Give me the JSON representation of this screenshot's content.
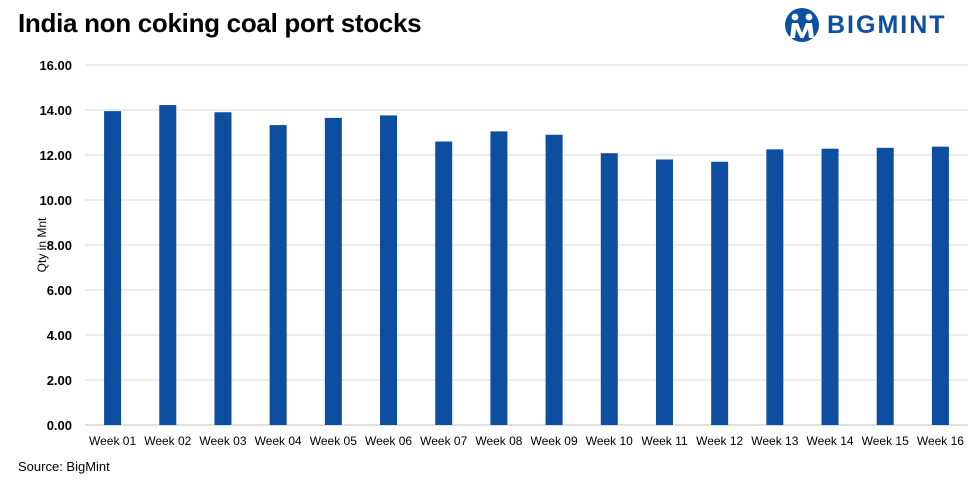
{
  "title": "India non coking coal port stocks",
  "logo": {
    "text": "BIGMINT",
    "icon": "bigmint-logo-icon",
    "color": "#0d4fa0"
  },
  "source": "Source: BigMint",
  "chart_data": {
    "type": "bar",
    "title": "India non coking coal port stocks",
    "xlabel": "",
    "ylabel": "Qty in Mnt",
    "ylim": [
      0,
      16
    ],
    "yticks": [
      "0.00",
      "2.00",
      "4.00",
      "6.00",
      "8.00",
      "10.00",
      "12.00",
      "14.00",
      "16.00"
    ],
    "grid": true,
    "legend": "none",
    "bar_color": "#0d4ea1",
    "categories": [
      "Week 01",
      "Week 02",
      "Week 03",
      "Week 04",
      "Week 05",
      "Week 06",
      "Week 07",
      "Week 08",
      "Week 09",
      "Week 10",
      "Week 11",
      "Week 12",
      "Week 13",
      "Week 14",
      "Week 15",
      "Week 16"
    ],
    "values": [
      13.95,
      14.22,
      13.9,
      13.33,
      13.65,
      13.76,
      12.6,
      13.05,
      12.9,
      12.08,
      11.8,
      11.7,
      12.25,
      12.28,
      12.32,
      12.37
    ]
  }
}
